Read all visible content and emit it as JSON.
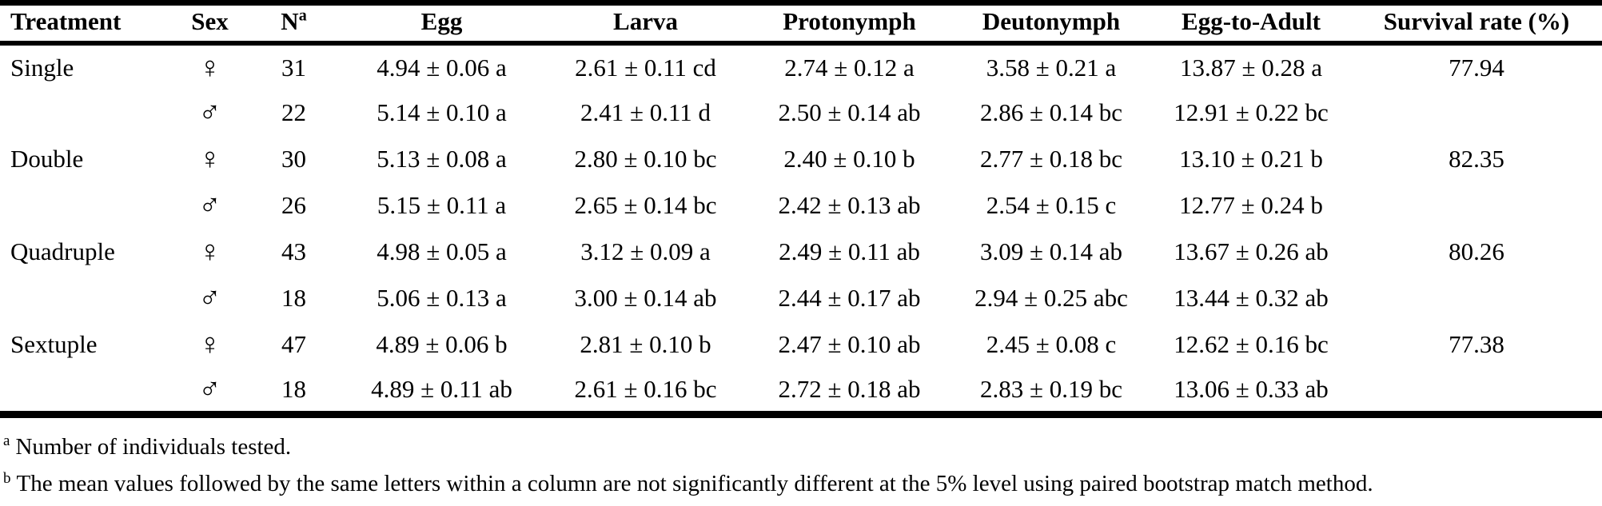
{
  "table": {
    "columns": [
      "Treatment",
      "Sex",
      "N",
      "Egg",
      "Larva",
      "Protonymph",
      "Deutonymph",
      "Egg-to-Adult",
      "Survival rate (%)"
    ],
    "n_superscript": "a",
    "rows": [
      {
        "treatment": "Single",
        "sex": "♀",
        "n": "31",
        "egg": "4.94 ± 0.06 a",
        "larva": "2.61 ± 0.11 cd",
        "protonymph": "2.74 ± 0.12 a",
        "deutonymph": "3.58 ± 0.21 a",
        "egg_to_adult": "13.87 ± 0.28 a",
        "survival_rate": "77.94"
      },
      {
        "treatment": "",
        "sex": "♂",
        "n": "22",
        "egg": "5.14 ± 0.10 a",
        "larva": "2.41 ± 0.11 d",
        "protonymph": "2.50 ± 0.14 ab",
        "deutonymph": "2.86 ± 0.14 bc",
        "egg_to_adult": "12.91 ± 0.22 bc",
        "survival_rate": ""
      },
      {
        "treatment": "Double",
        "sex": "♀",
        "n": "30",
        "egg": "5.13 ± 0.08 a",
        "larva": "2.80 ± 0.10 bc",
        "protonymph": "2.40 ± 0.10 b",
        "deutonymph": "2.77 ± 0.18 bc",
        "egg_to_adult": "13.10 ± 0.21 b",
        "survival_rate": "82.35"
      },
      {
        "treatment": "",
        "sex": "♂",
        "n": "26",
        "egg": "5.15 ± 0.11 a",
        "larva": "2.65 ± 0.14 bc",
        "protonymph": "2.42 ± 0.13 ab",
        "deutonymph": "2.54 ± 0.15 c",
        "egg_to_adult": "12.77 ± 0.24 b",
        "survival_rate": ""
      },
      {
        "treatment": "Quadruple",
        "sex": "♀",
        "n": "43",
        "egg": "4.98 ± 0.05 a",
        "larva": "3.12 ± 0.09 a",
        "protonymph": "2.49 ± 0.11 ab",
        "deutonymph": "3.09 ± 0.14 ab",
        "egg_to_adult": "13.67 ± 0.26 ab",
        "survival_rate": "80.26"
      },
      {
        "treatment": "",
        "sex": "♂",
        "n": "18",
        "egg": "5.06 ± 0.13 a",
        "larva": "3.00 ± 0.14 ab",
        "protonymph": "2.44 ± 0.17 ab",
        "deutonymph": "2.94 ± 0.25 abc",
        "egg_to_adult": "13.44 ± 0.32 ab",
        "survival_rate": ""
      },
      {
        "treatment": "Sextuple",
        "sex": "♀",
        "n": "47",
        "egg": "4.89 ± 0.06 b",
        "larva": "2.81 ± 0.10 b",
        "protonymph": "2.47 ± 0.10 ab",
        "deutonymph": "2.45 ± 0.08 c",
        "egg_to_adult": "12.62 ± 0.16 bc",
        "survival_rate": "77.38"
      },
      {
        "treatment": "",
        "sex": "♂",
        "n": "18",
        "egg": "4.89 ± 0.11 ab",
        "larva": "2.61 ± 0.16 bc",
        "protonymph": "2.72 ± 0.18 ab",
        "deutonymph": "2.83 ± 0.19 bc",
        "egg_to_adult": "13.06 ± 0.33 ab",
        "survival_rate": ""
      }
    ]
  },
  "footnotes": [
    {
      "marker": "a",
      "text": "Number of individuals tested."
    },
    {
      "marker": "b",
      "text": "The mean values followed by the same letters within a column are not significantly different at the 5% level using paired bootstrap match method."
    }
  ]
}
